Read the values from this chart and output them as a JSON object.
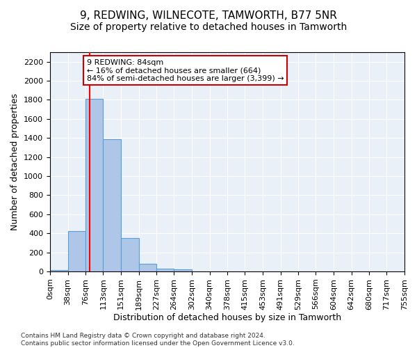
{
  "title": "9, REDWING, WILNECOTE, TAMWORTH, B77 5NR",
  "subtitle": "Size of property relative to detached houses in Tamworth",
  "xlabel": "Distribution of detached houses by size in Tamworth",
  "ylabel": "Number of detached properties",
  "bar_color": "#aec6e8",
  "bar_edge_color": "#5a9fd4",
  "background_color": "#eaf0f8",
  "grid_color": "#ffffff",
  "redline_x": 84,
  "annotation_text": "9 REDWING: 84sqm\n← 16% of detached houses are smaller (664)\n84% of semi-detached houses are larger (3,399) →",
  "annotation_box_color": "#ffffff",
  "annotation_box_edge": "#cc0000",
  "bin_edges": [
    0,
    38,
    76,
    113,
    151,
    189,
    227,
    264,
    302,
    340,
    378,
    415,
    453,
    491,
    529,
    566,
    604,
    642,
    680,
    717,
    755
  ],
  "bin_counts": [
    15,
    420,
    1810,
    1390,
    350,
    80,
    30,
    20,
    0,
    0,
    0,
    0,
    0,
    0,
    0,
    0,
    0,
    0,
    0,
    0
  ],
  "ylim": [
    0,
    2300
  ],
  "yticks": [
    0,
    200,
    400,
    600,
    800,
    1000,
    1200,
    1400,
    1600,
    1800,
    2000,
    2200
  ],
  "footer_text": "Contains HM Land Registry data © Crown copyright and database right 2024.\nContains public sector information licensed under the Open Government Licence v3.0.",
  "title_fontsize": 11,
  "subtitle_fontsize": 10,
  "ylabel_fontsize": 9,
  "xlabel_fontsize": 9,
  "tick_fontsize": 8,
  "footer_fontsize": 6.5
}
